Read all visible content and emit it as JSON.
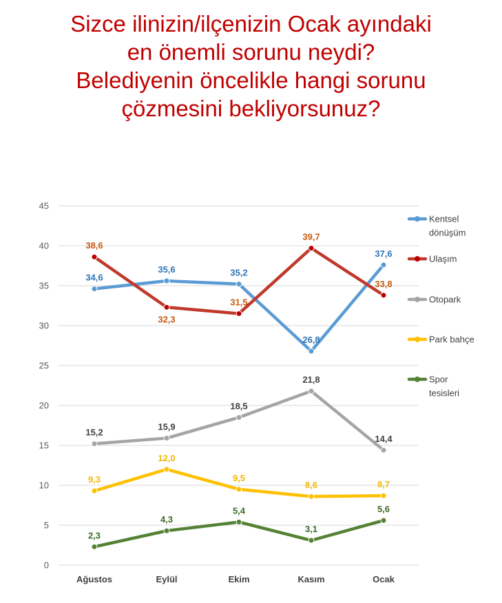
{
  "title_lines": [
    "Sizce ilinizin/ilçenizin Ocak ayındaki",
    "en önemli sorunu neydi?",
    "Belediyenin öncelikle hangi sorunu",
    "çözmesini bekliyorsunuz?"
  ],
  "chart_data": {
    "type": "line",
    "title": "Sizce ilinizin/ilçenizin Ocak ayındaki en önemli sorunu neydi? Belediyenin öncelikle hangi sorunu çözmesini bekliyorsunuz?",
    "categories": [
      "Ağustos",
      "Eylül",
      "Ekim",
      "Kasım",
      "Ocak"
    ],
    "ylim": [
      0,
      45
    ],
    "yticks": [
      0,
      5,
      10,
      15,
      20,
      25,
      30,
      35,
      40,
      45
    ],
    "grid": true,
    "legend_position": "right",
    "series": [
      {
        "name": "Kentsel dönüşüm",
        "legend_lines": [
          "Kentsel",
          "dönüşüm"
        ],
        "color": "#5b9bd5",
        "label_color": "#2e75b6",
        "values": [
          34.6,
          35.6,
          35.2,
          26.8,
          37.6
        ],
        "labels": [
          "34,6",
          "35,6",
          "35,2",
          "26,8",
          "37,6"
        ],
        "label_pos": [
          "above",
          "above",
          "above",
          "above",
          "above"
        ]
      },
      {
        "name": "Ulaşım",
        "legend_lines": [
          "Ulaşım"
        ],
        "color": "#c0392b",
        "label_color": "#c55a11",
        "marker_color": "#c00000",
        "values": [
          38.6,
          32.3,
          31.5,
          39.7,
          33.8
        ],
        "labels": [
          "38,6",
          "32,3",
          "31,5",
          "39,7",
          "33,8"
        ],
        "label_pos": [
          "above",
          "below",
          "above",
          "above",
          "above"
        ]
      },
      {
        "name": "Otopark",
        "legend_lines": [
          "Otopark"
        ],
        "color": "#a5a5a5",
        "label_color": "#404040",
        "values": [
          15.2,
          15.9,
          18.5,
          21.8,
          14.4
        ],
        "labels": [
          "15,2",
          "15,9",
          "18,5",
          "21,8",
          "14,4"
        ],
        "label_pos": [
          "above",
          "above",
          "above",
          "above",
          "above"
        ]
      },
      {
        "name": "Park bahçe",
        "legend_lines": [
          "Park bahçe"
        ],
        "color": "#ffc000",
        "label_color": "#f2b800",
        "values": [
          9.3,
          12.0,
          9.5,
          8.6,
          8.7
        ],
        "labels": [
          "9,3",
          "12,0",
          "9,5",
          "8,6",
          "8,7"
        ],
        "label_pos": [
          "above",
          "above",
          "above",
          "above",
          "above"
        ]
      },
      {
        "name": "Spor tesisleri",
        "legend_lines": [
          "Spor",
          "tesisleri"
        ],
        "color": "#548235",
        "label_color": "#3d6b25",
        "values": [
          2.3,
          4.3,
          5.4,
          3.1,
          5.6
        ],
        "labels": [
          "2,3",
          "4,3",
          "5,4",
          "3,1",
          "5,6"
        ],
        "label_pos": [
          "above",
          "above",
          "above",
          "above",
          "above"
        ]
      }
    ]
  }
}
